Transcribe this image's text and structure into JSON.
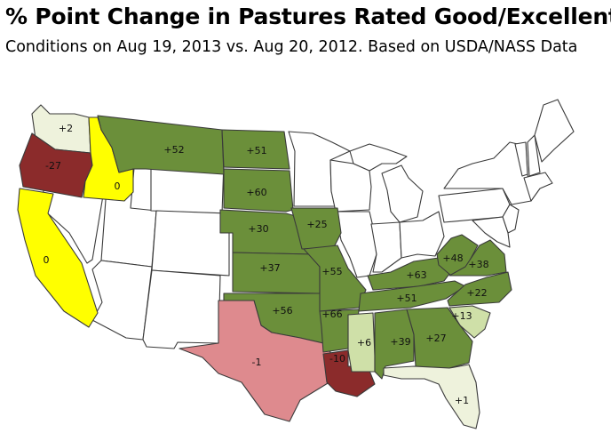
{
  "title": "% Point Change in Pastures Rated Good/Excellent",
  "subtitle": "Conditions on Aug 19, 2013 vs. Aug 20, 2012.  Based on USDA/NASS Data",
  "colors": {
    "strong_gain": "#6b8f3a",
    "small_gain": "#cfe0a8",
    "slight_gain": "#eef2dc",
    "no_change": "#ffff00",
    "slight_loss": "#de8a8e",
    "loss": "#8b2b2b",
    "no_data": "#ffffff"
  },
  "states": [
    {
      "code": "WA",
      "label": "+2",
      "category": "slight_gain"
    },
    {
      "code": "OR",
      "label": "-27",
      "category": "loss"
    },
    {
      "code": "ID",
      "label": "0",
      "category": "no_change"
    },
    {
      "code": "CA",
      "label": "0",
      "category": "no_change"
    },
    {
      "code": "MT",
      "label": "+52",
      "category": "strong_gain"
    },
    {
      "code": "ND",
      "label": "+51",
      "category": "strong_gain"
    },
    {
      "code": "SD",
      "label": "+60",
      "category": "strong_gain"
    },
    {
      "code": "NE",
      "label": "+30",
      "category": "strong_gain"
    },
    {
      "code": "KS",
      "label": "+37",
      "category": "strong_gain"
    },
    {
      "code": "OK",
      "label": "+56",
      "category": "strong_gain"
    },
    {
      "code": "TX",
      "label": "-1",
      "category": "slight_loss"
    },
    {
      "code": "IA",
      "label": "+25",
      "category": "strong_gain"
    },
    {
      "code": "MO",
      "label": "+55",
      "category": "strong_gain"
    },
    {
      "code": "AR",
      "label": "+66",
      "category": "strong_gain"
    },
    {
      "code": "LA",
      "label": "-10",
      "category": "loss"
    },
    {
      "code": "KY",
      "label": "+63",
      "category": "strong_gain"
    },
    {
      "code": "TN",
      "label": "+51",
      "category": "strong_gain"
    },
    {
      "code": "WV",
      "label": "+48",
      "category": "strong_gain"
    },
    {
      "code": "VA",
      "label": "+38",
      "category": "strong_gain"
    },
    {
      "code": "NC",
      "label": "+22",
      "category": "strong_gain"
    },
    {
      "code": "SC",
      "label": "+13",
      "category": "small_gain"
    },
    {
      "code": "MS",
      "label": "+6",
      "category": "small_gain"
    },
    {
      "code": "AL",
      "label": "+39",
      "category": "strong_gain"
    },
    {
      "code": "GA",
      "label": "+27",
      "category": "strong_gain"
    },
    {
      "code": "FL",
      "label": "+1",
      "category": "slight_gain"
    }
  ]
}
